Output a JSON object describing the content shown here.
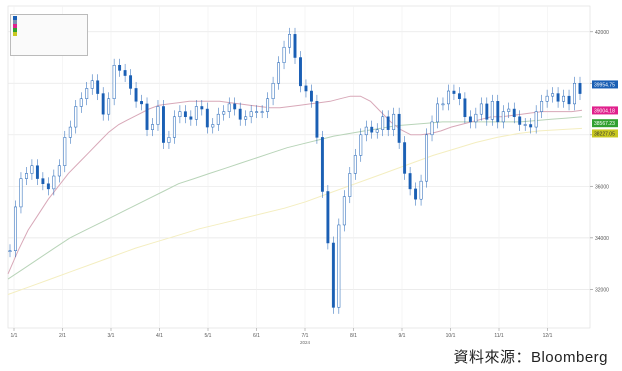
{
  "chart_data": {
    "type": "candlestick",
    "title": "",
    "xlabel": "",
    "ylabel": "",
    "year_label": "2024",
    "x_ticks": [
      "1/1",
      "2/1",
      "3/1",
      "4/1",
      "5/1",
      "6/1",
      "7/1",
      "8/1",
      "9/1",
      "10/1",
      "11/1",
      "12/1"
    ],
    "y_ticks": [
      32000,
      34000,
      36000,
      38000,
      40000,
      42000
    ],
    "ylim": [
      30500,
      43000
    ],
    "grid": true,
    "price_series": {
      "name": "",
      "color": "#1a5fb4",
      "values": [
        33500,
        35200,
        36300,
        36500,
        36800,
        36300,
        36100,
        35900,
        36400,
        36800,
        37900,
        38300,
        39100,
        39400,
        39800,
        40100,
        39600,
        38800,
        39400,
        40700,
        40500,
        40300,
        39800,
        39300,
        39200,
        38200,
        38400,
        39100,
        37700,
        37900,
        38700,
        38900,
        38700,
        38600,
        39100,
        39000,
        38300,
        38400,
        38800,
        38900,
        39200,
        39000,
        38600,
        38700,
        38900,
        38900,
        38900,
        39400,
        40000,
        40800,
        41400,
        41900,
        41000,
        39900,
        39700,
        39300,
        37900,
        35800,
        33800,
        31300,
        34500,
        35600,
        36500,
        37200,
        38000,
        38300,
        38100,
        38200,
        38700,
        38200,
        38800,
        37700,
        36500,
        35900,
        35500,
        36200,
        38000,
        38500,
        39200,
        39200,
        39700,
        39600,
        39400,
        38700,
        38500,
        38800,
        39200,
        38600,
        39300,
        38500,
        38900,
        39000,
        38700,
        38400,
        38400,
        38300,
        38900,
        39300,
        39500,
        39600,
        39300,
        39500,
        39200,
        40000,
        39600
      ]
    },
    "ma_short": {
      "name": "",
      "color": "#d8a8b8",
      "values": [
        32600,
        33500,
        34300,
        34900,
        35500,
        36000,
        36500,
        36900,
        37300,
        37700,
        38100,
        38400,
        38600,
        38800,
        39000,
        39150,
        39200,
        39250,
        39300,
        39300,
        39300,
        39300,
        39250,
        39200,
        39150,
        39100,
        39050,
        39050,
        39100,
        39150,
        39200,
        39250,
        39300,
        39400,
        39500,
        39500,
        39300,
        38900,
        38500,
        38200,
        38000,
        38000,
        38050,
        38150,
        38300,
        38400,
        38500,
        38600,
        38700,
        38700,
        38750,
        38800,
        38850,
        38900,
        38900,
        38900,
        38900,
        38950
      ]
    },
    "ma_mid": {
      "name": "",
      "color": "#b8d4b8",
      "values": [
        32400,
        32800,
        33200,
        33600,
        34000,
        34300,
        34600,
        34900,
        35200,
        35500,
        35800,
        36100,
        36300,
        36500,
        36700,
        36900,
        37100,
        37300,
        37500,
        37650,
        37800,
        37950,
        38050,
        38150,
        38250,
        38350,
        38400,
        38450,
        38500,
        38500,
        38500,
        38500,
        38500,
        38500,
        38550,
        38600,
        38650,
        38700
      ]
    },
    "ma_long": {
      "name": "",
      "color": "#f4eec0",
      "values": [
        31800,
        32100,
        32400,
        32700,
        33000,
        33300,
        33600,
        33850,
        34100,
        34350,
        34550,
        34750,
        34950,
        35150,
        35400,
        35700,
        36000,
        36300,
        36600,
        36900,
        37200,
        37450,
        37700,
        37900,
        38050,
        38150,
        38200,
        38250
      ]
    },
    "price_tags": [
      {
        "value": "39954.75",
        "color": "#1a5fb4",
        "text_color": "#ffffff"
      },
      {
        "value": "39004.18",
        "color": "#e0208c",
        "text_color": "#ffffff"
      },
      {
        "value": "38567.23",
        "color": "#30a030",
        "text_color": "#ffffff"
      },
      {
        "value": "38227.05",
        "color": "#c8c820",
        "text_color": "#333333"
      }
    ]
  },
  "legend": {
    "rows": [
      {
        "label": "",
        "color": "#1a5fb4"
      },
      {
        "label": "",
        "color": "#7a8fb0"
      },
      {
        "label": "",
        "color": "#e0208c"
      },
      {
        "label": "",
        "color": "#30a030"
      },
      {
        "label": "",
        "color": "#c8c820"
      }
    ]
  },
  "source_note": "資料來源：Bloomberg"
}
